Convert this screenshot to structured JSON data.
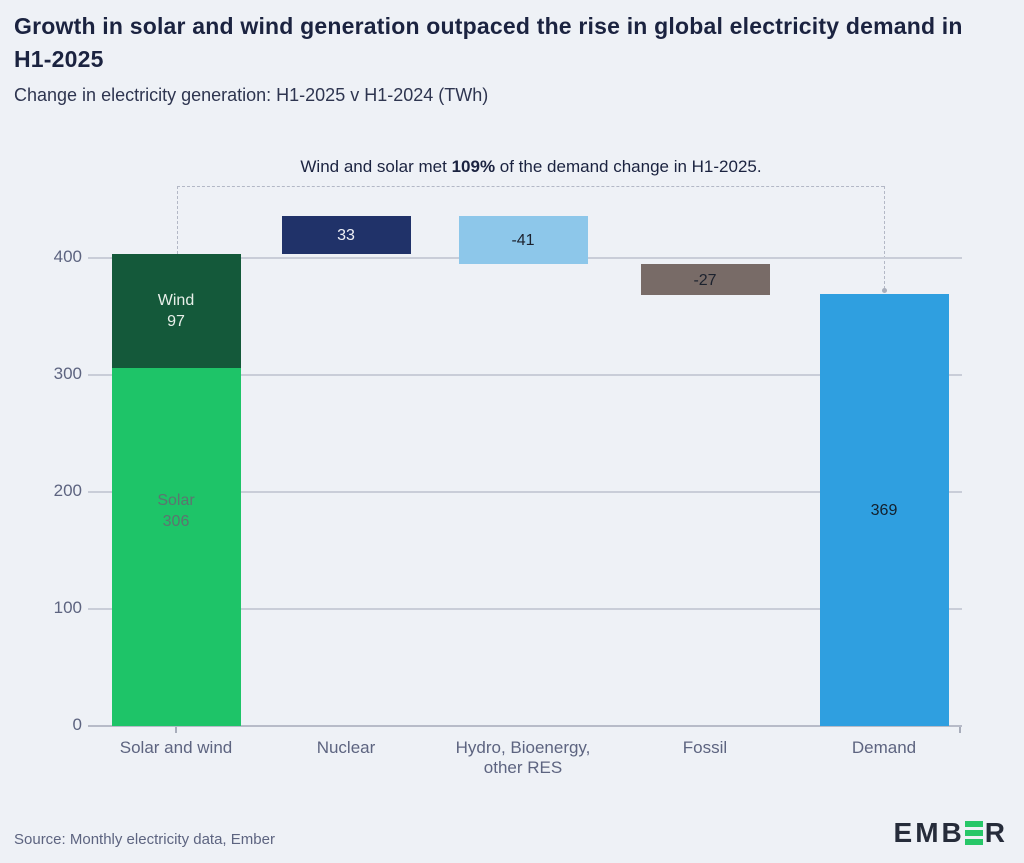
{
  "colors": {
    "background": "#eef1f6",
    "title_text": "#1b2340",
    "muted_text": "#5d6480",
    "gridline": "#c9cdd8",
    "axis_line": "#b7bbc8",
    "connector": "#b3b8c6"
  },
  "chart_data": {
    "type": "bar",
    "subtype": "waterfall-stacked",
    "title": "Growth in solar and wind generation outpaced the rise in global electricity demand in H1-2025",
    "subtitle": "Change in electricity generation: H1-2025 v H1-2024 (TWh)",
    "annotation": {
      "text_prefix": "Wind and solar met ",
      "text_bold": "109%",
      "text_suffix": " of the demand change in H1-2025."
    },
    "unit": "TWh",
    "ylim": [
      0,
      480
    ],
    "yticks": [
      0,
      100,
      200,
      300,
      400
    ],
    "grid": "horizontal",
    "legend": "none",
    "categories": [
      "Solar and wind",
      "Nuclear",
      "Hydro, Bioenergy, other RES",
      "Fossil",
      "Demand"
    ],
    "bars": [
      {
        "name": "solar-and-wind",
        "axis_label_lines": [
          "Solar and wind"
        ],
        "start": 0,
        "segments": [
          {
            "name": "Solar",
            "value": 306,
            "color": "#1ec468",
            "label_lines": [
              "Solar",
              "306"
            ],
            "label_color": "#5c7570",
            "label_frac": 0.4
          },
          {
            "name": "Wind",
            "value": 97,
            "color": "#14593a",
            "label_lines": [
              "Wind",
              "97"
            ],
            "label_color": "#e8efe9",
            "label_frac": 0.5
          }
        ]
      },
      {
        "name": "nuclear",
        "axis_label_lines": [
          "Nuclear"
        ],
        "start": 403,
        "value": 33,
        "value_label": "33",
        "color": "#203269",
        "label_color": "#f0f2f7"
      },
      {
        "name": "hydro-bioenergy-other-res",
        "axis_label_lines": [
          "Hydro, Bioenergy,",
          "other RES"
        ],
        "start": 436,
        "value": -41,
        "value_label": "-41",
        "color": "#8dc7ea",
        "label_color": "#1c222e"
      },
      {
        "name": "fossil",
        "axis_label_lines": [
          "Fossil"
        ],
        "start": 395,
        "value": -27,
        "value_label": "-27",
        "color": "#786b67",
        "label_color": "#1c222e"
      },
      {
        "name": "demand",
        "axis_label_lines": [
          "Demand"
        ],
        "start": 0,
        "value": 369,
        "value_label": "369",
        "color": "#2f9fe0",
        "label_color": "#13202c"
      }
    ],
    "source": "Source: Monthly electricity data, Ember"
  },
  "footer": {
    "logo_left": "EMB",
    "logo_right": "R",
    "logo_green": "#27c768"
  }
}
